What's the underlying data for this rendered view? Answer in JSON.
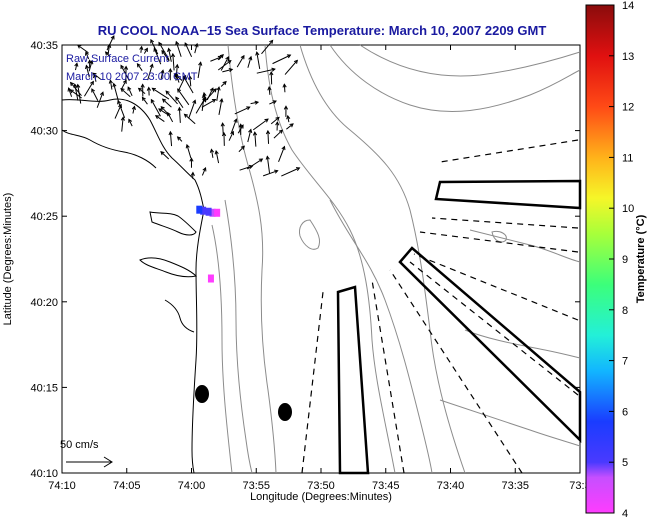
{
  "chart_data": {
    "type": "map",
    "title": "RU COOL  NOAA−15  Sea Surface Temperature:  March 10, 2007 2209 GMT",
    "xlabel": "Longitude (Degrees:Minutes)",
    "ylabel": "Latitude (Degrees:Minutes)",
    "x_ticks": [
      "74:10",
      "74:05",
      "74:00",
      "73:55",
      "73:50",
      "73:45",
      "73:40",
      "73:35",
      "73:3"
    ],
    "y_ticks": [
      "40:10",
      "40:15",
      "40:20",
      "40:25",
      "40:30",
      "40:35"
    ],
    "xlim_minutes_west": [
      74.1667,
      73.5
    ],
    "ylim_minutes_north": [
      40.1667,
      40.5833
    ],
    "annotation": {
      "line1": "Raw Surface Current",
      "line2": "March 10 2007 23:00 GMT"
    },
    "scale_label": "50 cm/s",
    "colorbar": {
      "label": "Temperature (°C)",
      "min": 4,
      "max": 14,
      "ticks": [
        "4",
        "5",
        "6",
        "7",
        "8",
        "9",
        "10",
        "11",
        "12",
        "13",
        "14"
      ]
    },
    "sst_pixels": [
      {
        "lon": 73.973,
        "lat": 40.42,
        "temp": 4.8
      },
      {
        "lon": 73.967,
        "lat": 40.42,
        "temp": 4.5
      },
      {
        "lon": 73.978,
        "lat": 40.421,
        "temp": 5.2
      },
      {
        "lon": 73.985,
        "lat": 40.422,
        "temp": 5.5
      },
      {
        "lon": 73.99,
        "lat": 40.423,
        "temp": 6.6
      },
      {
        "lon": 73.975,
        "lat": 40.356,
        "temp": 4.3
      }
    ]
  }
}
